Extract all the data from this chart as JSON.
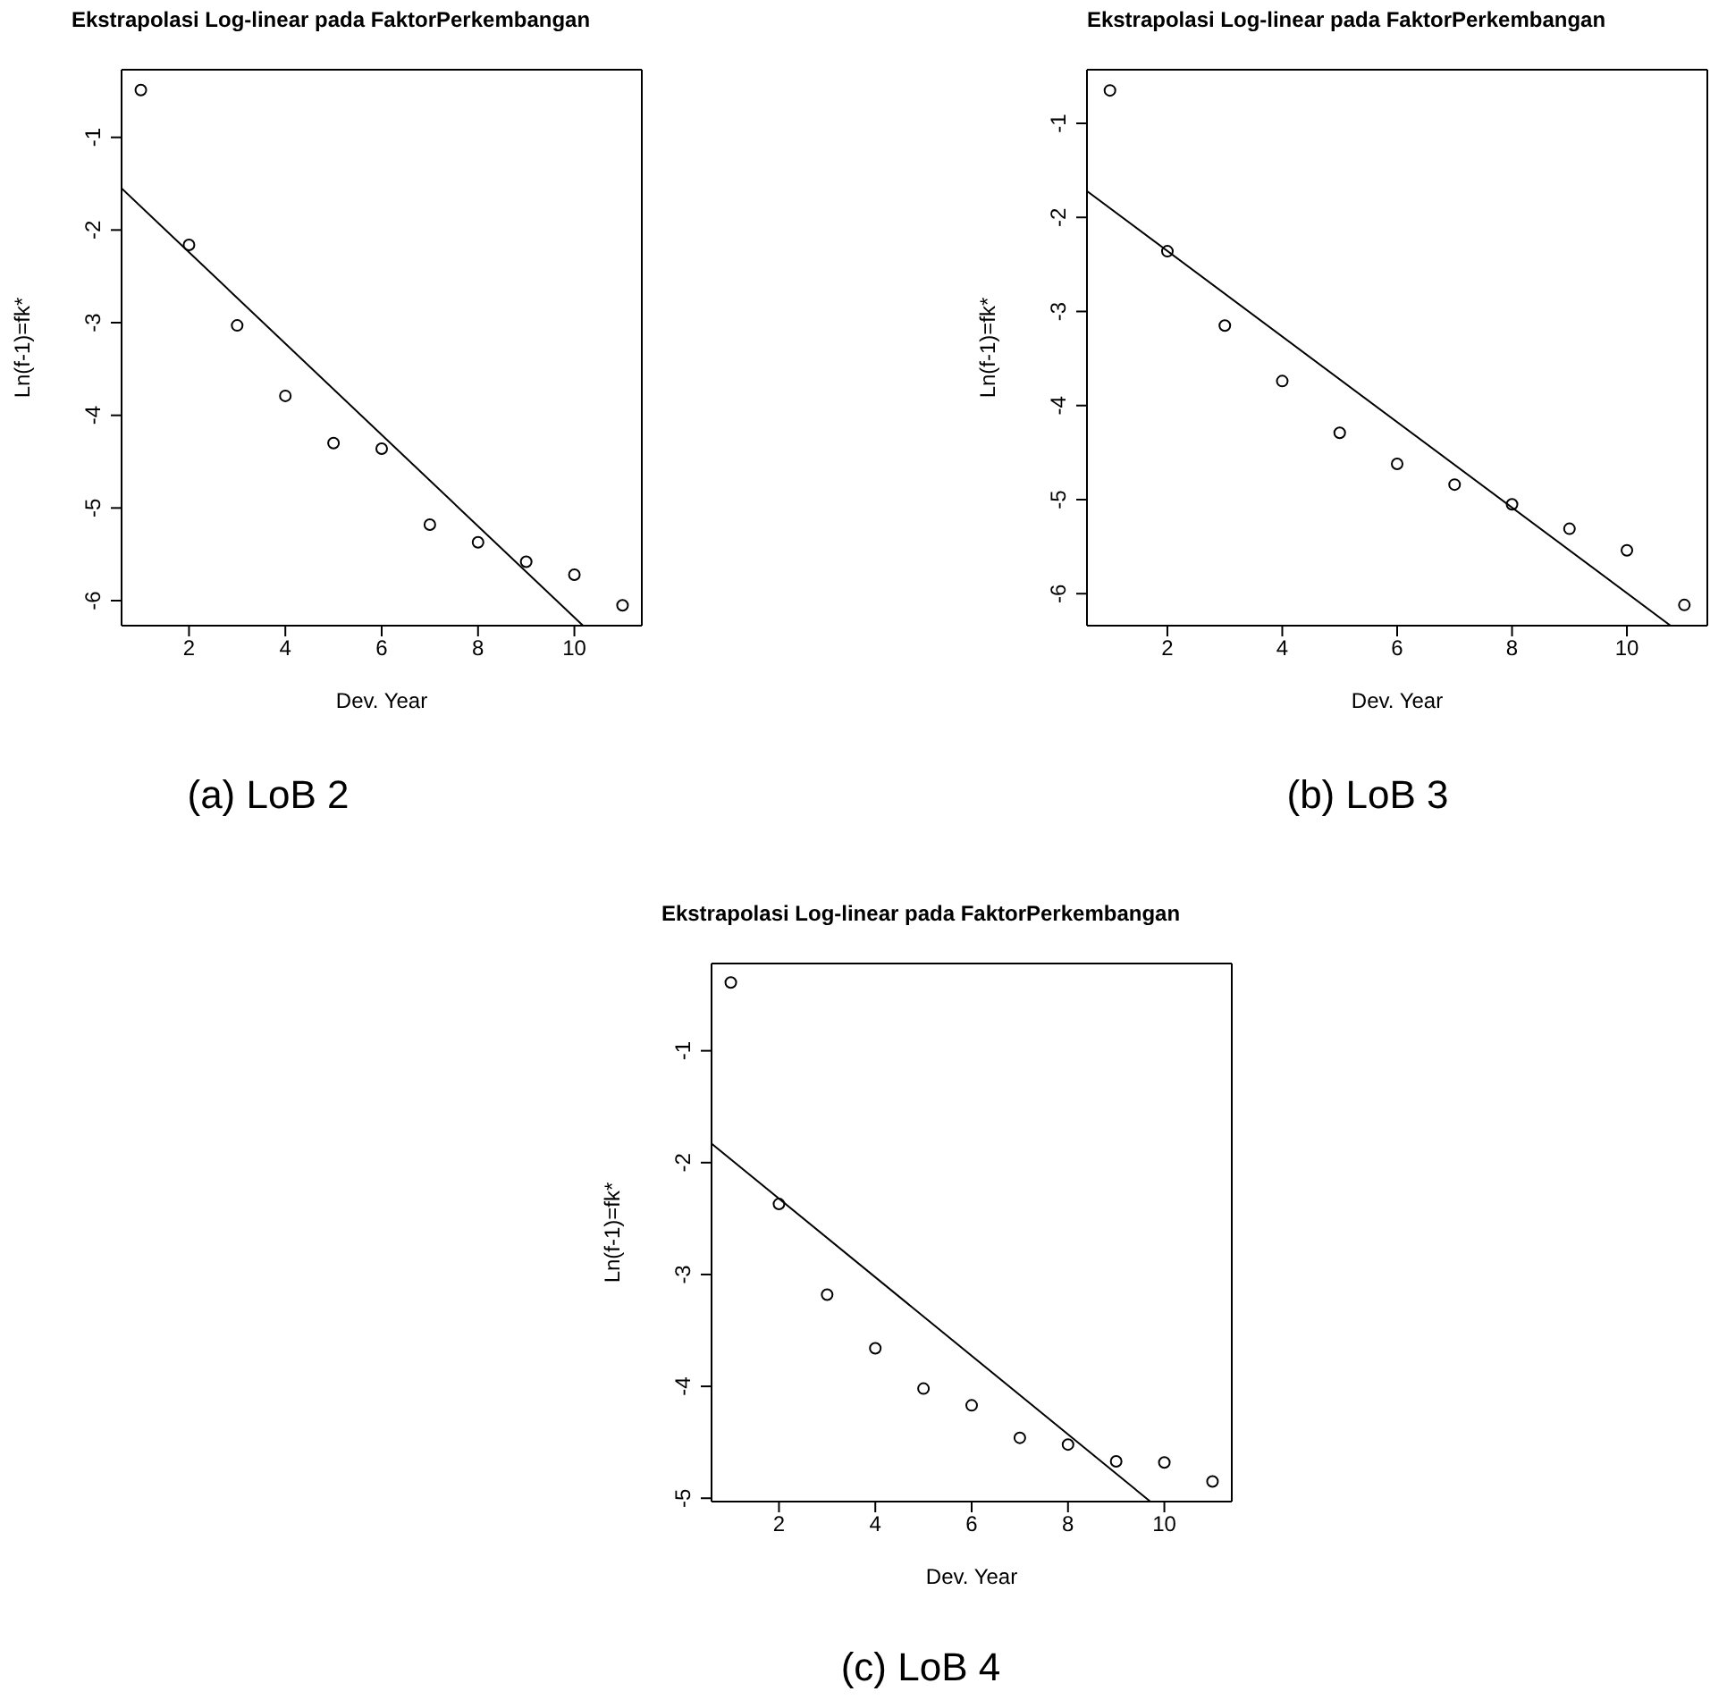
{
  "chart_data": [
    {
      "type": "scatter",
      "title": "Ekstrapolasi Log-linear pada FaktorPerkembangan",
      "xlabel": "Dev. Year",
      "ylabel": "Ln(f-1)=fk*",
      "annotations": [
        "(a) LoB 2"
      ],
      "xlim": [
        0.6,
        11.4
      ],
      "ylim": [
        -6.27,
        -0.27
      ],
      "xticks": [
        2,
        4,
        6,
        8,
        10
      ],
      "yticks": [
        -6,
        -5,
        -4,
        -3,
        -2,
        -1
      ],
      "series": [
        {
          "color": "#000000",
          "marker": "circle",
          "x": [
            1,
            2,
            3,
            4,
            5,
            6,
            7,
            8,
            9,
            10,
            11
          ],
          "values": [
            -0.49,
            -2.16,
            -3.03,
            -3.79,
            -4.3,
            -4.36,
            -5.18,
            -5.37,
            -5.58,
            -5.72,
            -6.05
          ]
        },
        {
          "type": "line",
          "color": "#000000",
          "marker": "none",
          "x": [
            0.6,
            10.18
          ],
          "values": [
            -1.55,
            -6.27
          ]
        }
      ]
    },
    {
      "type": "scatter",
      "title": "Ekstrapolasi Log-linear pada FaktorPerkembangan",
      "xlabel": "Dev. Year",
      "ylabel": "Ln(f-1)=fk*",
      "annotations": [
        "(b) LoB 3"
      ],
      "xlim": [
        0.6,
        11.4
      ],
      "ylim": [
        -6.34,
        -0.43
      ],
      "xticks": [
        2,
        4,
        6,
        8,
        10
      ],
      "yticks": [
        -6,
        -5,
        -4,
        -3,
        -2,
        -1
      ],
      "series": [
        {
          "color": "#000000",
          "marker": "circle",
          "x": [
            1,
            2,
            3,
            4,
            5,
            6,
            7,
            8,
            9,
            10,
            11
          ],
          "values": [
            -0.65,
            -2.36,
            -3.15,
            -3.74,
            -4.29,
            -4.62,
            -4.84,
            -5.05,
            -5.31,
            -5.54,
            -6.12
          ]
        },
        {
          "type": "line",
          "color": "#000000",
          "marker": "none",
          "x": [
            0.6,
            10.76
          ],
          "values": [
            -1.72,
            -6.34
          ]
        }
      ]
    },
    {
      "type": "scatter",
      "title": "Ekstrapolasi Log-linear pada FaktorPerkembangan",
      "xlabel": "Dev. Year",
      "ylabel": "Ln(f-1)=fk*",
      "annotations": [
        "(c) LoB 4"
      ],
      "xlim": [
        0.6,
        11.4
      ],
      "ylim": [
        -5.03,
        -0.22
      ],
      "xticks": [
        2,
        4,
        6,
        8,
        10
      ],
      "yticks": [
        -5,
        -4,
        -3,
        -2,
        -1
      ],
      "series": [
        {
          "color": "#000000",
          "marker": "circle",
          "x": [
            1,
            2,
            3,
            4,
            5,
            6,
            7,
            8,
            9,
            10,
            11
          ],
          "values": [
            -0.39,
            -2.37,
            -3.18,
            -3.66,
            -4.02,
            -4.17,
            -4.46,
            -4.52,
            -4.67,
            -4.68,
            -4.85
          ]
        },
        {
          "type": "line",
          "color": "#000000",
          "marker": "none",
          "x": [
            0.6,
            9.71
          ],
          "values": [
            -1.83,
            -5.03
          ]
        }
      ]
    }
  ]
}
